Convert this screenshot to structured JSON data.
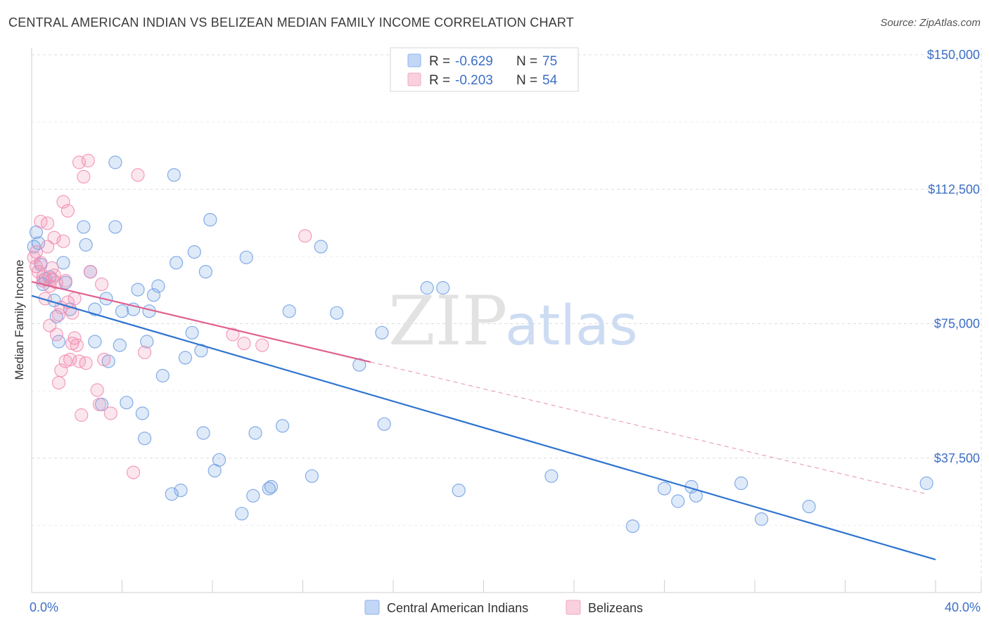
{
  "title": "CENTRAL AMERICAN INDIAN VS BELIZEAN MEDIAN FAMILY INCOME CORRELATION CHART",
  "source": "Source: ZipAtlas.com",
  "watermark": {
    "zip": "ZIP",
    "atlas": "atlas"
  },
  "legend_top": {
    "rows": [
      {
        "r_label": "R =",
        "r_value": "-0.629",
        "n_label": "N =",
        "n_value": "75",
        "color": "#8fb4ec"
      },
      {
        "r_label": "R =",
        "r_value": "-0.203",
        "n_label": "N =",
        "n_value": "54",
        "color": "#f3a9c2"
      }
    ]
  },
  "legend_bottom": [
    {
      "label": "Central American Indians",
      "color": "#8fb4ec"
    },
    {
      "label": "Belizeans",
      "color": "#f3a9c2"
    }
  ],
  "chart_data": {
    "type": "scatter",
    "xlabel": "",
    "ylabel": "Median Family Income",
    "xlim": [
      0,
      40
    ],
    "ylim": [
      0,
      150000
    ],
    "x_tick_labels": [
      {
        "value": 0,
        "label": "0.0%"
      },
      {
        "value": 40,
        "label": "40.0%"
      }
    ],
    "y_tick_labels": [
      {
        "value": 37500,
        "label": "$37,500"
      },
      {
        "value": 75000,
        "label": "$75,000"
      },
      {
        "value": 112500,
        "label": "$112,500"
      },
      {
        "value": 150000,
        "label": "$150,000"
      }
    ],
    "grid": true,
    "legend_position": "top-center",
    "series": [
      {
        "name": "Central American Indians",
        "color": "#6e9fe3",
        "trend": {
          "x": [
            0,
            40
          ],
          "y": [
            82800,
            9200
          ],
          "style": "solid",
          "color": "#2f74d0"
        },
        "points": [
          [
            0.2,
            100500
          ],
          [
            0.3,
            97500
          ],
          [
            0.4,
            91500
          ],
          [
            0.5,
            86000
          ],
          [
            0.6,
            87500
          ],
          [
            0.8,
            88000
          ],
          [
            1.0,
            81500
          ],
          [
            1.1,
            77000
          ],
          [
            1.2,
            70000
          ],
          [
            1.4,
            92000
          ],
          [
            1.5,
            86500
          ],
          [
            1.7,
            79000
          ],
          [
            2.3,
            102000
          ],
          [
            2.4,
            97000
          ],
          [
            2.6,
            89500
          ],
          [
            2.8,
            70000
          ],
          [
            2.8,
            79000
          ],
          [
            3.1,
            52500
          ],
          [
            3.3,
            82000
          ],
          [
            3.4,
            64500
          ],
          [
            3.7,
            120000
          ],
          [
            3.7,
            102000
          ],
          [
            3.9,
            69000
          ],
          [
            4.0,
            78500
          ],
          [
            4.2,
            53000
          ],
          [
            4.5,
            79000
          ],
          [
            4.7,
            84500
          ],
          [
            4.9,
            50000
          ],
          [
            5.0,
            43000
          ],
          [
            5.1,
            70000
          ],
          [
            5.2,
            78500
          ],
          [
            5.4,
            83000
          ],
          [
            5.6,
            85500
          ],
          [
            5.8,
            60500
          ],
          [
            6.2,
            27500
          ],
          [
            6.3,
            116500
          ],
          [
            6.4,
            92000
          ],
          [
            6.6,
            28500
          ],
          [
            6.8,
            65500
          ],
          [
            7.1,
            72500
          ],
          [
            7.2,
            95000
          ],
          [
            7.5,
            67500
          ],
          [
            7.6,
            44500
          ],
          [
            7.7,
            89500
          ],
          [
            7.9,
            104000
          ],
          [
            8.1,
            34000
          ],
          [
            8.3,
            37000
          ],
          [
            9.3,
            22000
          ],
          [
            9.5,
            93500
          ],
          [
            9.8,
            27000
          ],
          [
            9.9,
            44500
          ],
          [
            10.5,
            29000
          ],
          [
            10.6,
            29500
          ],
          [
            11.1,
            46500
          ],
          [
            11.4,
            78500
          ],
          [
            12.4,
            32500
          ],
          [
            12.8,
            96500
          ],
          [
            13.5,
            78000
          ],
          [
            14.5,
            63500
          ],
          [
            15.5,
            72500
          ],
          [
            15.6,
            47000
          ],
          [
            17.5,
            85000
          ],
          [
            18.2,
            85000
          ],
          [
            18.9,
            28500
          ],
          [
            23.0,
            32500
          ],
          [
            26.6,
            18500
          ],
          [
            28.0,
            29000
          ],
          [
            28.6,
            25500
          ],
          [
            29.2,
            29500
          ],
          [
            29.4,
            27000
          ],
          [
            31.4,
            30500
          ],
          [
            32.3,
            20500
          ],
          [
            34.4,
            24000
          ],
          [
            39.6,
            30500
          ],
          [
            0.1,
            96500
          ]
        ]
      },
      {
        "name": "Belizeans",
        "color": "#f08db0",
        "trend": {
          "x": [
            0,
            15
          ],
          "y": [
            86700,
            64300
          ],
          "style": "solid",
          "color": "#e0608f",
          "extension": {
            "x": [
              15,
              39.6
            ],
            "y": [
              64300,
              27500
            ],
            "style": "dashed"
          }
        },
        "points": [
          [
            0.1,
            93500
          ],
          [
            0.2,
            91000
          ],
          [
            0.3,
            89500
          ],
          [
            0.4,
            103500
          ],
          [
            0.5,
            87000
          ],
          [
            0.6,
            82000
          ],
          [
            0.7,
            96500
          ],
          [
            0.7,
            103000
          ],
          [
            0.8,
            85500
          ],
          [
            0.8,
            74500
          ],
          [
            0.9,
            87500
          ],
          [
            1.0,
            88500
          ],
          [
            1.0,
            99000
          ],
          [
            1.1,
            86500
          ],
          [
            1.1,
            72000
          ],
          [
            1.2,
            77500
          ],
          [
            1.2,
            58500
          ],
          [
            1.3,
            79500
          ],
          [
            1.3,
            62000
          ],
          [
            1.4,
            98000
          ],
          [
            1.4,
            109000
          ],
          [
            1.5,
            87000
          ],
          [
            1.6,
            106500
          ],
          [
            1.6,
            81000
          ],
          [
            1.7,
            65000
          ],
          [
            1.8,
            78000
          ],
          [
            1.9,
            71000
          ],
          [
            1.9,
            82000
          ],
          [
            2.0,
            69000
          ],
          [
            2.1,
            64500
          ],
          [
            2.1,
            120000
          ],
          [
            2.3,
            116000
          ],
          [
            2.4,
            64000
          ],
          [
            2.5,
            120500
          ],
          [
            2.6,
            89500
          ],
          [
            2.9,
            56500
          ],
          [
            3.0,
            52500
          ],
          [
            3.1,
            86000
          ],
          [
            3.2,
            65000
          ],
          [
            3.5,
            50000
          ],
          [
            4.5,
            33500
          ],
          [
            4.7,
            116500
          ],
          [
            5.0,
            67000
          ],
          [
            8.9,
            72000
          ],
          [
            9.4,
            69500
          ],
          [
            10.2,
            69000
          ],
          [
            12.1,
            99500
          ],
          [
            0.2,
            95000
          ],
          [
            0.4,
            92000
          ],
          [
            0.9,
            90500
          ],
          [
            1.5,
            64500
          ],
          [
            0.5,
            88000
          ],
          [
            2.2,
            49500
          ],
          [
            1.8,
            69500
          ]
        ]
      }
    ]
  }
}
